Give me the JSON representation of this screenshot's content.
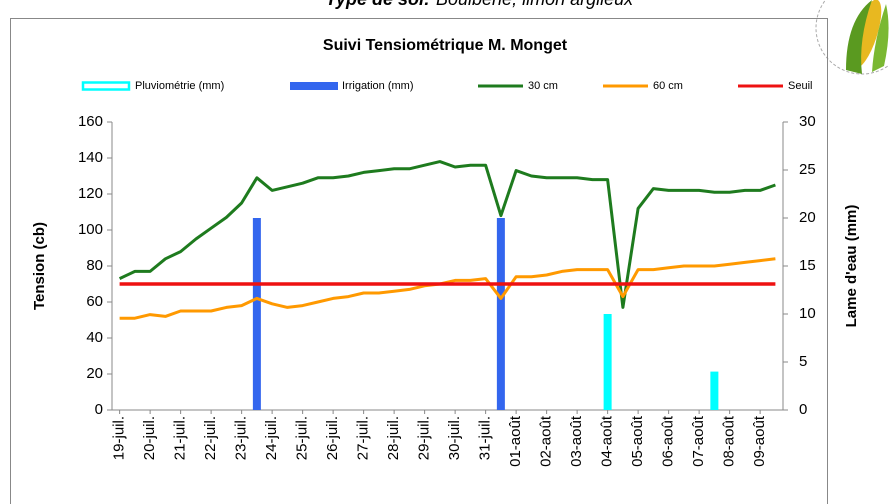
{
  "header": {
    "label": "Type de sol:",
    "text": "Boulbène, limon argileux"
  },
  "chart_data": {
    "type": "line",
    "title": "Suivi Tensiométrique M. Monget",
    "y_label": "Tension (cb)",
    "y2_label": "Lame d'eau (mm)",
    "categories": [
      "19-juil.",
      null,
      "20-juil.",
      null,
      "21-juil.",
      null,
      "22-juil.",
      null,
      "23-juil.",
      null,
      "24-juil.",
      null,
      "25-juil.",
      null,
      "26-juil.",
      null,
      "27-juil.",
      null,
      "28-juil.",
      null,
      "29-juil.",
      null,
      "30-juil.",
      null,
      "31-juil.",
      null,
      "01-août",
      null,
      "02-août",
      null,
      "03-août",
      null,
      "04-août",
      null,
      "05-août",
      null,
      "06-août",
      null,
      "07-août",
      null,
      "08-août",
      null,
      "09-août",
      null
    ],
    "ylim": [
      0,
      160
    ],
    "yticks": [
      0,
      20,
      40,
      60,
      80,
      100,
      120,
      140,
      160
    ],
    "y2lim": [
      0,
      30
    ],
    "y2ticks": [
      0,
      5,
      10,
      15,
      20,
      25,
      30
    ],
    "series": [
      {
        "name": "Pluviométrie (mm)",
        "type": "bar",
        "axis": "y2",
        "color": "#00ffff",
        "values": [
          null,
          null,
          null,
          null,
          null,
          null,
          null,
          null,
          null,
          null,
          null,
          null,
          null,
          null,
          null,
          null,
          null,
          null,
          null,
          null,
          null,
          null,
          null,
          null,
          null,
          null,
          null,
          null,
          null,
          null,
          null,
          null,
          10,
          null,
          null,
          null,
          null,
          null,
          null,
          4,
          null,
          null,
          null,
          null
        ]
      },
      {
        "name": "Irrigation (mm)",
        "type": "bar",
        "axis": "y2",
        "color": "#3366ee",
        "values": [
          null,
          null,
          null,
          null,
          null,
          null,
          null,
          null,
          null,
          20,
          null,
          null,
          null,
          null,
          null,
          null,
          null,
          null,
          null,
          null,
          null,
          null,
          null,
          null,
          null,
          20,
          null,
          null,
          null,
          null,
          null,
          null,
          null,
          null,
          null,
          null,
          null,
          null,
          null,
          null,
          null,
          null,
          null,
          null
        ]
      },
      {
        "name": "30 cm",
        "type": "line",
        "color": "#1e7b1e",
        "values": [
          73,
          77,
          77,
          84,
          88,
          95,
          101,
          107,
          115,
          129,
          122,
          124,
          126,
          129,
          129,
          130,
          132,
          133,
          134,
          134,
          136,
          138,
          135,
          136,
          136,
          108,
          133,
          130,
          129,
          129,
          129,
          128,
          128,
          57,
          112,
          123,
          122,
          122,
          122,
          121,
          121,
          122,
          122,
          125
        ]
      },
      {
        "name": "60 cm",
        "type": "line",
        "color": "#ff9900",
        "values": [
          51,
          51,
          53,
          52,
          55,
          55,
          55,
          57,
          58,
          62,
          59,
          57,
          58,
          60,
          62,
          63,
          65,
          65,
          66,
          67,
          69,
          70,
          72,
          72,
          73,
          62,
          74,
          74,
          75,
          77,
          78,
          78,
          78,
          63,
          78,
          78,
          79,
          80,
          80,
          80,
          81,
          82,
          83,
          84
        ]
      },
      {
        "name": "Seuil",
        "type": "line",
        "color": "#ee1111",
        "values": [
          70,
          70,
          70,
          70,
          70,
          70,
          70,
          70,
          70,
          70,
          70,
          70,
          70,
          70,
          70,
          70,
          70,
          70,
          70,
          70,
          70,
          70,
          70,
          70,
          70,
          70,
          70,
          70,
          70,
          70,
          70,
          70,
          70,
          70,
          70,
          70,
          70,
          70,
          70,
          70,
          70,
          70,
          70,
          70
        ]
      }
    ]
  }
}
